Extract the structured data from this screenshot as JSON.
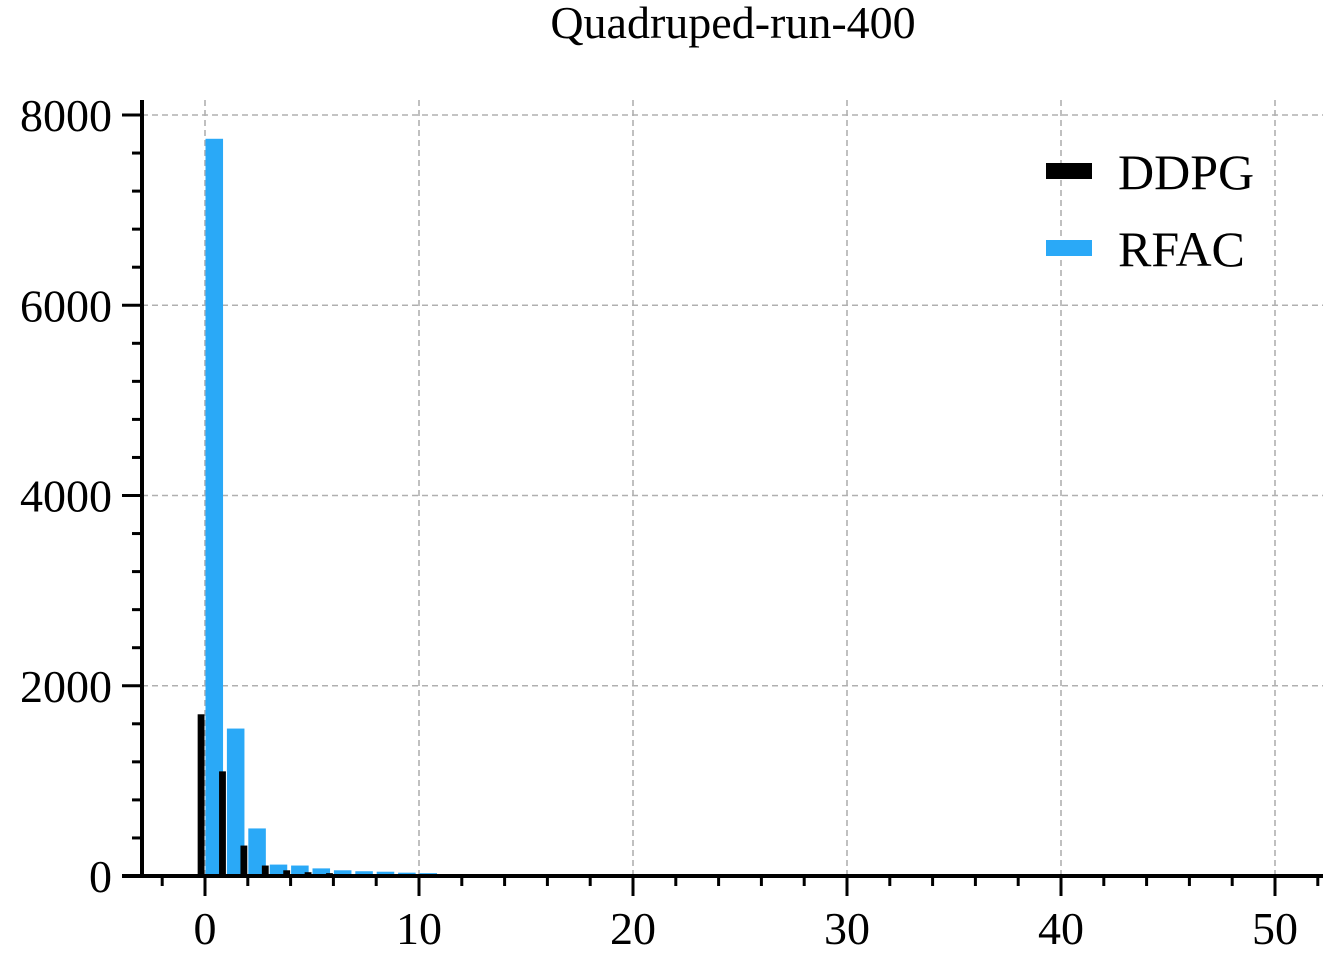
{
  "chart_data": {
    "type": "bar",
    "title": "Quadruped-run-400",
    "xlabel": "",
    "ylabel": "",
    "xlim": [
      -3,
      52
    ],
    "ylim": [
      0,
      8100
    ],
    "xticks": [
      0,
      10,
      20,
      30,
      40,
      50
    ],
    "yticks": [
      0,
      2000,
      4000,
      6000,
      8000
    ],
    "grid": true,
    "legend_position": "top-right",
    "series": [
      {
        "name": "DDPG",
        "color": "#000000",
        "x": [
          0,
          1,
          2,
          3,
          4,
          5,
          6,
          7,
          8,
          9,
          10,
          11,
          12
        ],
        "values": [
          1700,
          1100,
          320,
          110,
          60,
          40,
          30,
          20,
          15,
          10,
          8,
          6,
          4
        ]
      },
      {
        "name": "RFAC",
        "color": "#2aa9f7",
        "x": [
          0,
          1,
          2,
          3,
          4,
          5,
          6,
          7,
          8,
          9,
          10,
          11,
          12
        ],
        "values": [
          7750,
          1550,
          500,
          120,
          110,
          80,
          60,
          50,
          45,
          35,
          30,
          20,
          15
        ]
      }
    ]
  }
}
